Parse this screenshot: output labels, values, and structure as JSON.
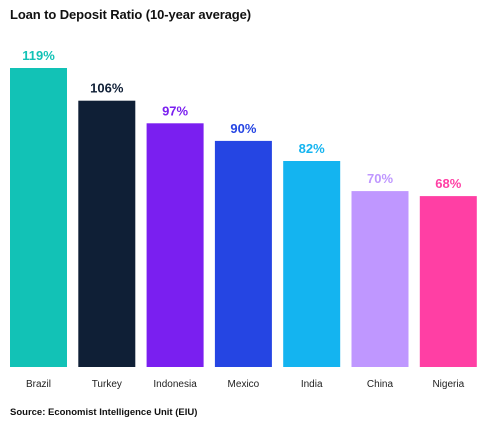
{
  "chart_data": {
    "type": "bar",
    "title": "Loan to Deposit Ratio (10-year average)",
    "categories": [
      "Brazil",
      "Turkey",
      "Indonesia",
      "Mexico",
      "India",
      "China",
      "Nigeria"
    ],
    "values": [
      119,
      106,
      97,
      90,
      82,
      70,
      68
    ],
    "value_labels": [
      "119%",
      "106%",
      "97%",
      "90%",
      "82%",
      "70%",
      "68%"
    ],
    "colors": [
      "#12c2b6",
      "#0f1f36",
      "#7a1ff0",
      "#2545e3",
      "#14b4f0",
      "#bf97ff",
      "#ff3fa4"
    ],
    "ylim": [
      0,
      119
    ],
    "xlabel": "",
    "ylabel": "",
    "grid": false,
    "legend": "none"
  },
  "source": "Source: Economist Intelligence Unit (EIU)"
}
